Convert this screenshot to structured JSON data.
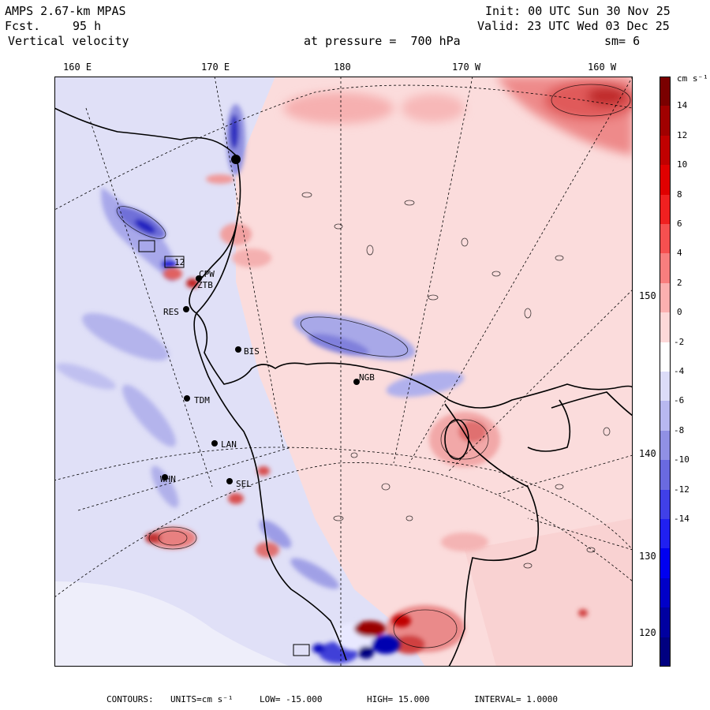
{
  "header": {
    "model": "AMPS 2.67-km MPAS",
    "fcst_label": "Fcst.",
    "fcst_value": "95 h",
    "field": "Vertical velocity",
    "init": "Init: 00 UTC Sun 30 Nov 25",
    "valid": "Valid: 23 UTC Wed 03 Dec 25",
    "level": "at pressure =  700 hPa",
    "smoothing": "sm= 6"
  },
  "top_axis_labels": [
    "160 E",
    "170 E",
    "180",
    "170 W",
    "160 W"
  ],
  "right_axis_labels": [
    "150 W",
    "140 W",
    "130 W",
    "120 W"
  ],
  "stations": [
    "CPW",
    "ZTB",
    "RES",
    "BIS",
    "NGB",
    "TDM",
    "LAN",
    "WHN",
    "SEL"
  ],
  "markers": [
    "12"
  ],
  "colorbar": {
    "units": "cm s⁻¹",
    "tick_labels": [
      "14",
      "12",
      "10",
      "8",
      "6",
      "4",
      "2",
      "0",
      "-2",
      "-4",
      "-6",
      "-8",
      "-10",
      "-12",
      "-14"
    ],
    "colors": [
      "#7a0000",
      "#a00000",
      "#c00000",
      "#e00000",
      "#f02020",
      "#f65050",
      "#f87e7e",
      "#fbb0b0",
      "#fdd8d8",
      "#ffffff",
      "#dcdcf8",
      "#b8b8f0",
      "#9090e4",
      "#6a6ae0",
      "#4040e8",
      "#2020f0",
      "#0000f0",
      "#0000c8",
      "#0000a0",
      "#000080"
    ]
  },
  "footer": {
    "contours_label": "CONTOURS:",
    "units": "UNITS=cm s⁻¹",
    "low": "LOW= -15.000",
    "high": "HIGH= 15.000",
    "interval": "INTERVAL= 1.0000"
  },
  "palette": {
    "background_blue": "#e0e0f7",
    "pale_red": "#fad4d4",
    "mid_red": "#f49a9a",
    "strong_red": "#d84040",
    "dark_red": "#9a0000",
    "mid_blue": "#a6a6ea",
    "strong_blue": "#4040e0",
    "dark_blue": "#0000b0"
  }
}
